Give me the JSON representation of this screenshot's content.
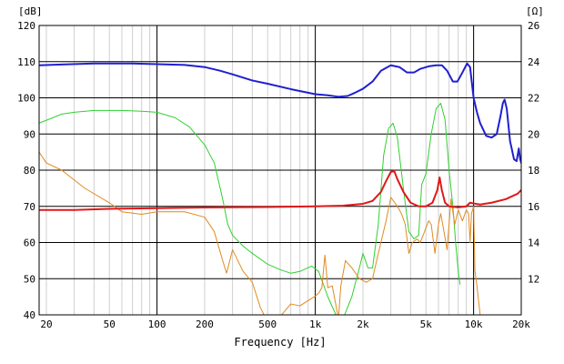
{
  "chart_data": {
    "type": "line",
    "xlabel": "Frequency [Hz]",
    "x_scale": "log",
    "xlim": [
      18,
      20000
    ],
    "y_left_unit": "[dB]",
    "y_right_unit": "[Ω]",
    "y_left_lim": [
      40,
      120
    ],
    "y_right_lim": [
      10,
      26
    ],
    "grid": true,
    "x_ticks": [
      {
        "value": 20,
        "label": "20"
      },
      {
        "value": 50,
        "label": "50"
      },
      {
        "value": 100,
        "label": "100"
      },
      {
        "value": 200,
        "label": "200"
      },
      {
        "value": 500,
        "label": "500"
      },
      {
        "value": 1000,
        "label": "1k"
      },
      {
        "value": 2000,
        "label": "2k"
      },
      {
        "value": 5000,
        "label": "5k"
      },
      {
        "value": 10000,
        "label": "10k"
      },
      {
        "value": 20000,
        "label": "20k"
      }
    ],
    "y_left_ticks": [
      40,
      50,
      60,
      70,
      80,
      90,
      100,
      110,
      120
    ],
    "y_right_ticks": [
      12,
      14,
      16,
      18,
      20,
      22,
      24,
      26
    ],
    "series": [
      {
        "color": "#2020d0",
        "axis": "left",
        "stroke_width": 2,
        "points": [
          [
            18,
            109
          ],
          [
            25,
            109.2
          ],
          [
            40,
            109.5
          ],
          [
            70,
            109.5
          ],
          [
            100,
            109.3
          ],
          [
            150,
            109.1
          ],
          [
            200,
            108.5
          ],
          [
            250,
            107.5
          ],
          [
            300,
            106.5
          ],
          [
            400,
            104.8
          ],
          [
            500,
            103.9
          ],
          [
            700,
            102.4
          ],
          [
            1000,
            101
          ],
          [
            1200,
            100.7
          ],
          [
            1400,
            100.3
          ],
          [
            1600,
            100.5
          ],
          [
            1800,
            101.5
          ],
          [
            2000,
            102.5
          ],
          [
            2300,
            104.5
          ],
          [
            2600,
            107.5
          ],
          [
            3000,
            109
          ],
          [
            3400,
            108.5
          ],
          [
            3800,
            107
          ],
          [
            4200,
            107
          ],
          [
            4600,
            108
          ],
          [
            5200,
            108.7
          ],
          [
            5800,
            109
          ],
          [
            6300,
            109
          ],
          [
            6800,
            107.5
          ],
          [
            7400,
            104.5
          ],
          [
            7900,
            104.5
          ],
          [
            8500,
            107
          ],
          [
            9100,
            109.5
          ],
          [
            9500,
            108.5
          ],
          [
            10000,
            100
          ],
          [
            10500,
            96
          ],
          [
            11000,
            93
          ],
          [
            12000,
            89.5
          ],
          [
            13000,
            89
          ],
          [
            14000,
            90
          ],
          [
            14800,
            95
          ],
          [
            15300,
            98.5
          ],
          [
            15700,
            99.5
          ],
          [
            16200,
            97
          ],
          [
            17000,
            88
          ],
          [
            17500,
            85.5
          ],
          [
            18000,
            83
          ],
          [
            18700,
            82.5
          ],
          [
            19300,
            86
          ],
          [
            19700,
            83
          ],
          [
            20000,
            82
          ]
        ]
      },
      {
        "color": "#30d030",
        "axis": "left",
        "stroke_width": 1,
        "points": [
          [
            18,
            93
          ],
          [
            22,
            94.5
          ],
          [
            25,
            95.5
          ],
          [
            30,
            96
          ],
          [
            40,
            96.5
          ],
          [
            60,
            96.5
          ],
          [
            80,
            96.3
          ],
          [
            100,
            96
          ],
          [
            130,
            94.5
          ],
          [
            160,
            92
          ],
          [
            200,
            87
          ],
          [
            230,
            82
          ],
          [
            260,
            72
          ],
          [
            280,
            65
          ],
          [
            300,
            62
          ],
          [
            350,
            59
          ],
          [
            400,
            57
          ],
          [
            500,
            54
          ],
          [
            600,
            52.5
          ],
          [
            700,
            51.5
          ],
          [
            800,
            52
          ],
          [
            950,
            53.5
          ],
          [
            1050,
            52
          ],
          [
            1200,
            45
          ],
          [
            1350,
            40
          ],
          [
            1500,
            39
          ],
          [
            1700,
            45
          ],
          [
            1900,
            53
          ],
          [
            2000,
            57
          ],
          [
            2150,
            53
          ],
          [
            2300,
            53
          ],
          [
            2500,
            65
          ],
          [
            2700,
            84
          ],
          [
            2900,
            91.5
          ],
          [
            3100,
            93
          ],
          [
            3300,
            89
          ],
          [
            3600,
            75
          ],
          [
            3900,
            63
          ],
          [
            4200,
            61
          ],
          [
            4500,
            62
          ],
          [
            4700,
            76
          ],
          [
            5000,
            79
          ],
          [
            5400,
            90
          ],
          [
            5800,
            97
          ],
          [
            6200,
            98.5
          ],
          [
            6600,
            94
          ],
          [
            7000,
            80
          ],
          [
            7400,
            70
          ],
          [
            7700,
            60
          ],
          [
            8000,
            52
          ],
          [
            8200,
            48.5
          ]
        ]
      },
      {
        "color": "#e08a20",
        "axis": "left",
        "stroke_width": 1,
        "points": [
          [
            18,
            85
          ],
          [
            20,
            82
          ],
          [
            25,
            80
          ],
          [
            35,
            75
          ],
          [
            50,
            71
          ],
          [
            60,
            68.5
          ],
          [
            80,
            67.8
          ],
          [
            100,
            68.5
          ],
          [
            150,
            68.5
          ],
          [
            200,
            67
          ],
          [
            230,
            63
          ],
          [
            260,
            55
          ],
          [
            275,
            51.5
          ],
          [
            300,
            58
          ],
          [
            350,
            52
          ],
          [
            400,
            49
          ],
          [
            450,
            42
          ],
          [
            500,
            38
          ],
          [
            560,
            38
          ],
          [
            700,
            43
          ],
          [
            800,
            42.5
          ],
          [
            1000,
            45.2
          ],
          [
            1050,
            46
          ],
          [
            1100,
            47.5
          ],
          [
            1150,
            56.5
          ],
          [
            1200,
            47.5
          ],
          [
            1280,
            48
          ],
          [
            1400,
            39
          ],
          [
            1450,
            48
          ],
          [
            1550,
            55
          ],
          [
            1700,
            53
          ],
          [
            1900,
            50
          ],
          [
            2100,
            49
          ],
          [
            2300,
            50
          ],
          [
            2500,
            57
          ],
          [
            2800,
            66
          ],
          [
            3000,
            72.5
          ],
          [
            3300,
            70
          ],
          [
            3500,
            68
          ],
          [
            3700,
            65
          ],
          [
            3900,
            57
          ],
          [
            4100,
            60
          ],
          [
            4400,
            61
          ],
          [
            4600,
            60
          ],
          [
            4800,
            62
          ],
          [
            5200,
            66
          ],
          [
            5400,
            65
          ],
          [
            5700,
            57
          ],
          [
            6000,
            65
          ],
          [
            6200,
            68
          ],
          [
            6500,
            63
          ],
          [
            6800,
            58
          ],
          [
            7200,
            72
          ],
          [
            7600,
            65
          ],
          [
            8000,
            69
          ],
          [
            8500,
            66
          ],
          [
            9000,
            69
          ],
          [
            9300,
            68
          ],
          [
            9500,
            60
          ],
          [
            9700,
            68
          ],
          [
            10000,
            70
          ],
          [
            10200,
            52
          ],
          [
            10500,
            48
          ],
          [
            11000,
            40
          ]
        ]
      },
      {
        "color": "#e01818",
        "axis": "left",
        "stroke_width": 2,
        "points": [
          [
            18,
            69
          ],
          [
            30,
            69
          ],
          [
            50,
            69.3
          ],
          [
            100,
            69.5
          ],
          [
            200,
            69.7
          ],
          [
            500,
            69.8
          ],
          [
            1000,
            70
          ],
          [
            1500,
            70.2
          ],
          [
            2000,
            70.7
          ],
          [
            2300,
            71.5
          ],
          [
            2600,
            74
          ],
          [
            2800,
            77
          ],
          [
            3000,
            79.5
          ],
          [
            3150,
            79.8
          ],
          [
            3300,
            77.5
          ],
          [
            3600,
            74
          ],
          [
            4000,
            71
          ],
          [
            4500,
            70
          ],
          [
            5000,
            70
          ],
          [
            5500,
            71
          ],
          [
            5900,
            74.5
          ],
          [
            6100,
            78
          ],
          [
            6300,
            74.5
          ],
          [
            6600,
            71
          ],
          [
            7000,
            70
          ],
          [
            8000,
            69.7
          ],
          [
            9000,
            70
          ],
          [
            9500,
            71
          ],
          [
            10000,
            70.8
          ],
          [
            11000,
            70.5
          ],
          [
            13000,
            71
          ],
          [
            16000,
            72
          ],
          [
            19000,
            73.5
          ],
          [
            20000,
            74.5
          ]
        ]
      }
    ]
  }
}
